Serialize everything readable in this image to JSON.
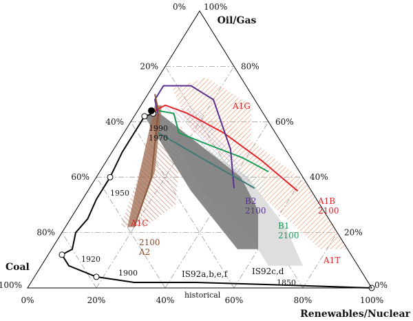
{
  "chart_data": {
    "type": "ternary",
    "axes": {
      "top": "Oil/Gas",
      "left": "Coal",
      "right": "Renewables/Nuclear"
    },
    "left_edge_ticks": [
      "0%",
      "20%",
      "40%",
      "60%",
      "80%",
      "100%"
    ],
    "right_edge_ticks": [
      "100%",
      "80%",
      "60%",
      "40%",
      "20%",
      "0%"
    ],
    "bottom_edge_ticks": [
      "0%",
      "20%",
      "40%",
      "60%",
      "80%",
      "100%"
    ],
    "grid": true,
    "historical": {
      "label": "historical",
      "year_labels": [
        "1850",
        "1900",
        "1920",
        "1950",
        "1970",
        "1990"
      ],
      "markers": [
        {
          "year": "1850",
          "coal": 0.0,
          "oilgas": 0.0,
          "renew": 1.0
        },
        {
          "year": "1900",
          "coal": 0.78,
          "oilgas": 0.04,
          "renew": 0.18
        },
        {
          "year": "1920",
          "coal": 0.84,
          "oilgas": 0.12,
          "renew": 0.04
        },
        {
          "year": "1950",
          "coal": 0.56,
          "oilgas": 0.4,
          "renew": 0.04
        },
        {
          "year": "1970",
          "coal": 0.35,
          "oilgas": 0.62,
          "renew": 0.03
        },
        {
          "year": "1990",
          "coal": 0.32,
          "oilgas": 0.63,
          "renew": 0.05
        }
      ],
      "path": [
        {
          "coal": 0.0,
          "oilgas": 0.0,
          "renew": 1.0
        },
        {
          "coal": 0.24,
          "oilgas": 0.01,
          "renew": 0.75
        },
        {
          "coal": 0.5,
          "oilgas": 0.02,
          "renew": 0.48
        },
        {
          "coal": 0.68,
          "oilgas": 0.02,
          "renew": 0.3
        },
        {
          "coal": 0.78,
          "oilgas": 0.04,
          "renew": 0.18
        },
        {
          "coal": 0.84,
          "oilgas": 0.08,
          "renew": 0.08
        },
        {
          "coal": 0.84,
          "oilgas": 0.12,
          "renew": 0.04
        },
        {
          "coal": 0.8,
          "oilgas": 0.14,
          "renew": 0.06
        },
        {
          "coal": 0.76,
          "oilgas": 0.2,
          "renew": 0.04
        },
        {
          "coal": 0.7,
          "oilgas": 0.25,
          "renew": 0.05
        },
        {
          "coal": 0.64,
          "oilgas": 0.32,
          "renew": 0.04
        },
        {
          "coal": 0.56,
          "oilgas": 0.4,
          "renew": 0.04
        },
        {
          "coal": 0.48,
          "oilgas": 0.49,
          "renew": 0.03
        },
        {
          "coal": 0.4,
          "oilgas": 0.57,
          "renew": 0.03
        },
        {
          "coal": 0.35,
          "oilgas": 0.62,
          "renew": 0.03
        },
        {
          "coal": 0.32,
          "oilgas": 0.63,
          "renew": 0.05
        }
      ],
      "end_marker": {
        "coal": 0.32,
        "oilgas": 0.64,
        "renew": 0.04
      }
    },
    "regions": [
      {
        "name": "IS92a,b,e,f",
        "label": "IS92a,b,e,f",
        "style": "dark-gray",
        "color": "#7a7a7a",
        "points": [
          {
            "coal": 0.35,
            "oilgas": 0.62,
            "renew": 0.03
          },
          {
            "coal": 0.3,
            "oilgas": 0.63,
            "renew": 0.07
          },
          {
            "coal": 0.18,
            "oilgas": 0.4,
            "renew": 0.42
          },
          {
            "coal": 0.19,
            "oilgas": 0.28,
            "renew": 0.53
          },
          {
            "coal": 0.26,
            "oilgas": 0.14,
            "renew": 0.6
          },
          {
            "coal": 0.32,
            "oilgas": 0.14,
            "renew": 0.54
          },
          {
            "coal": 0.35,
            "oilgas": 0.35,
            "renew": 0.3
          }
        ]
      },
      {
        "name": "IS92c,d",
        "label": "IS92c,d",
        "style": "light-gray",
        "color": "#dedede",
        "points": [
          {
            "coal": 0.3,
            "oilgas": 0.6,
            "renew": 0.1
          },
          {
            "coal": 0.26,
            "oilgas": 0.54,
            "renew": 0.2
          },
          {
            "coal": 0.16,
            "oilgas": 0.4,
            "renew": 0.44
          },
          {
            "coal": 0.14,
            "oilgas": 0.22,
            "renew": 0.64
          },
          {
            "coal": 0.16,
            "oilgas": 0.08,
            "renew": 0.76
          },
          {
            "coal": 0.26,
            "oilgas": 0.08,
            "renew": 0.66
          },
          {
            "coal": 0.26,
            "oilgas": 0.2,
            "renew": 0.54
          },
          {
            "coal": 0.32,
            "oilgas": 0.35,
            "renew": 0.33
          }
        ]
      },
      {
        "name": "A2",
        "label": "A2",
        "style": "brown-band",
        "color": "#a0684a",
        "points": [
          {
            "coal": 0.3,
            "oilgas": 0.66,
            "renew": 0.04
          },
          {
            "coal": 0.28,
            "oilgas": 0.66,
            "renew": 0.06
          },
          {
            "coal": 0.42,
            "oilgas": 0.42,
            "renew": 0.16
          },
          {
            "coal": 0.58,
            "oilgas": 0.22,
            "renew": 0.2
          },
          {
            "coal": 0.6,
            "oilgas": 0.22,
            "renew": 0.18
          },
          {
            "coal": 0.45,
            "oilgas": 0.44,
            "renew": 0.11
          }
        ]
      },
      {
        "name": "A1C",
        "label": "A1C",
        "style": "brown-hatch",
        "color": "#c8886a",
        "points": [
          {
            "coal": 0.33,
            "oilgas": 0.6,
            "renew": 0.07
          },
          {
            "coal": 0.26,
            "oilgas": 0.58,
            "renew": 0.16
          },
          {
            "coal": 0.42,
            "oilgas": 0.3,
            "renew": 0.28
          },
          {
            "coal": 0.55,
            "oilgas": 0.22,
            "renew": 0.23
          },
          {
            "coal": 0.62,
            "oilgas": 0.22,
            "renew": 0.16
          },
          {
            "coal": 0.48,
            "oilgas": 0.4,
            "renew": 0.12
          }
        ]
      },
      {
        "name": "A1G",
        "label": "A1G",
        "style": "orange-hatch",
        "color": "#e8a27a",
        "points": [
          {
            "coal": 0.22,
            "oilgas": 0.72,
            "renew": 0.06
          },
          {
            "coal": 0.1,
            "oilgas": 0.76,
            "renew": 0.14
          },
          {
            "coal": 0.02,
            "oilgas": 0.66,
            "renew": 0.32
          },
          {
            "coal": 0.08,
            "oilgas": 0.54,
            "renew": 0.38
          },
          {
            "coal": 0.24,
            "oilgas": 0.56,
            "renew": 0.2
          }
        ]
      },
      {
        "name": "A1T",
        "label": "A1T",
        "style": "orange-hatch",
        "color": "#e8a27a",
        "points": [
          {
            "coal": 0.24,
            "oilgas": 0.62,
            "renew": 0.14
          },
          {
            "coal": 0.12,
            "oilgas": 0.6,
            "renew": 0.28
          },
          {
            "coal": 0.0,
            "oilgas": 0.38,
            "renew": 0.62
          },
          {
            "coal": 0.0,
            "oilgas": 0.14,
            "renew": 0.86
          },
          {
            "coal": 0.08,
            "oilgas": 0.14,
            "renew": 0.78
          },
          {
            "coal": 0.18,
            "oilgas": 0.4,
            "renew": 0.42
          }
        ]
      },
      {
        "name": "B1-band",
        "label": "",
        "style": "green-hatch",
        "color": "#9ec9a8",
        "points": [
          {
            "coal": 0.3,
            "oilgas": 0.62,
            "renew": 0.08
          },
          {
            "coal": 0.22,
            "oilgas": 0.5,
            "renew": 0.28
          },
          {
            "coal": 0.12,
            "oilgas": 0.38,
            "renew": 0.5
          },
          {
            "coal": 0.14,
            "oilgas": 0.34,
            "renew": 0.52
          },
          {
            "coal": 0.26,
            "oilgas": 0.48,
            "renew": 0.26
          }
        ]
      },
      {
        "name": "B2-band",
        "label": "",
        "style": "purple-hatch",
        "color": "#b7a6d1",
        "points": [
          {
            "coal": 0.28,
            "oilgas": 0.66,
            "renew": 0.06
          },
          {
            "coal": 0.18,
            "oilgas": 0.64,
            "renew": 0.18
          },
          {
            "coal": 0.16,
            "oilgas": 0.36,
            "renew": 0.48
          },
          {
            "coal": 0.22,
            "oilgas": 0.36,
            "renew": 0.42
          },
          {
            "coal": 0.24,
            "oilgas": 0.56,
            "renew": 0.2
          }
        ]
      }
    ],
    "series": [
      {
        "name": "A1B",
        "label": "A1B\n2100",
        "color": "#e0242a",
        "points": [
          {
            "coal": 0.31,
            "oilgas": 0.64,
            "renew": 0.05
          },
          {
            "coal": 0.27,
            "oilgas": 0.66,
            "renew": 0.07
          },
          {
            "coal": 0.22,
            "oilgas": 0.63,
            "renew": 0.15
          },
          {
            "coal": 0.15,
            "oilgas": 0.56,
            "renew": 0.29
          },
          {
            "coal": 0.09,
            "oilgas": 0.46,
            "renew": 0.45
          },
          {
            "coal": 0.04,
            "oilgas": 0.35,
            "renew": 0.61
          }
        ]
      },
      {
        "name": "B1",
        "label": "B1\n2100",
        "color": "#169b55",
        "points": [
          {
            "coal": 0.3,
            "oilgas": 0.64,
            "renew": 0.06
          },
          {
            "coal": 0.26,
            "oilgas": 0.63,
            "renew": 0.11
          },
          {
            "coal": 0.28,
            "oilgas": 0.56,
            "renew": 0.16
          },
          {
            "coal": 0.22,
            "oilgas": 0.52,
            "renew": 0.26
          },
          {
            "coal": 0.14,
            "oilgas": 0.47,
            "renew": 0.39
          },
          {
            "coal": 0.09,
            "oilgas": 0.42,
            "renew": 0.49
          }
        ]
      },
      {
        "name": "B2",
        "label": "B2\n2100",
        "color": "#5a2e90",
        "points": [
          {
            "coal": 0.31,
            "oilgas": 0.62,
            "renew": 0.07
          },
          {
            "coal": 0.29,
            "oilgas": 0.68,
            "renew": 0.03
          },
          {
            "coal": 0.24,
            "oilgas": 0.73,
            "renew": 0.03
          },
          {
            "coal": 0.16,
            "oilgas": 0.73,
            "renew": 0.11
          },
          {
            "coal": 0.12,
            "oilgas": 0.68,
            "renew": 0.2
          },
          {
            "coal": 0.16,
            "oilgas": 0.5,
            "renew": 0.34
          },
          {
            "coal": 0.22,
            "oilgas": 0.36,
            "renew": 0.42
          }
        ]
      },
      {
        "name": "A1-teal",
        "label": "",
        "color": "#3e7a78",
        "points": [
          {
            "coal": 0.34,
            "oilgas": 0.56,
            "renew": 0.1
          },
          {
            "coal": 0.26,
            "oilgas": 0.47,
            "renew": 0.27
          },
          {
            "coal": 0.16,
            "oilgas": 0.36,
            "renew": 0.48
          }
        ]
      },
      {
        "name": "A2-line",
        "label": "",
        "color": "#8a5a3e",
        "points": [
          {
            "coal": 0.28,
            "oilgas": 0.7,
            "renew": 0.02
          },
          {
            "coal": 0.3,
            "oilgas": 0.64,
            "renew": 0.06
          },
          {
            "coal": 0.44,
            "oilgas": 0.4,
            "renew": 0.16
          },
          {
            "coal": 0.58,
            "oilgas": 0.22,
            "renew": 0.2
          }
        ]
      }
    ],
    "labels": {
      "A2": "2100\nA2",
      "A1C": "A1C",
      "A1G": "A1G",
      "A1T": "A1T",
      "IS92abef": "IS92a,b,e,f",
      "IS92cd": "IS92c,d"
    }
  }
}
